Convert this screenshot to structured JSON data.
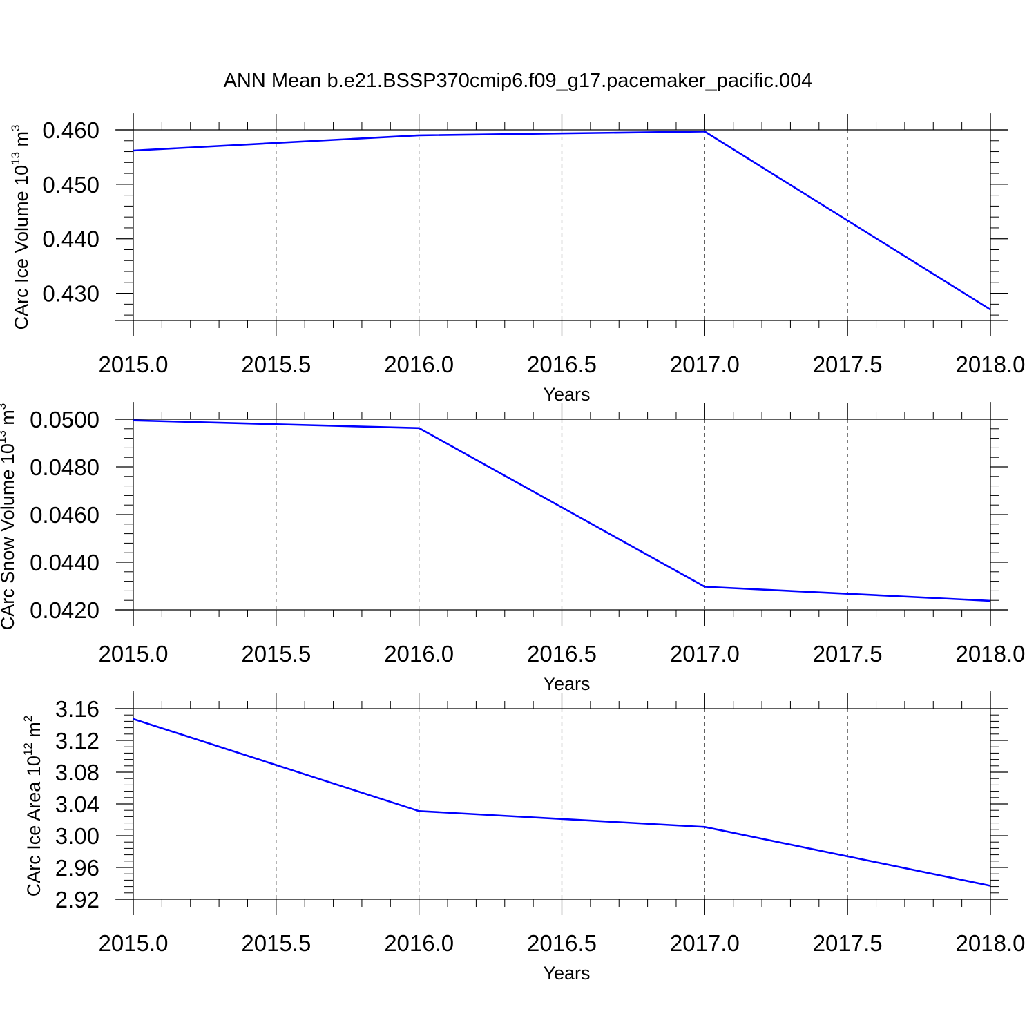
{
  "title": "ANN Mean b.e21.BSSP370cmip6.f09_g17.pacemaker_pacific.004",
  "colors": {
    "line": "#0000ff",
    "axis": "#000000",
    "grid": "#555555"
  },
  "chart_data": [
    {
      "type": "line",
      "xlabel": "Years",
      "ylabel": {
        "text": "CArc Ice Volume 10",
        "exp": "13",
        "unit": " m",
        "unit_exp": "3"
      },
      "x": [
        2015,
        2016,
        2017,
        2018
      ],
      "series": [
        {
          "values": [
            0.4562,
            0.459,
            0.4597,
            0.427
          ]
        }
      ],
      "xlim": [
        2015,
        2018
      ],
      "ylim": [
        0.425,
        0.46
      ],
      "xticks": [
        2015,
        2015.5,
        2016,
        2016.5,
        2017,
        2017.5,
        2018
      ],
      "xtick_labels": [
        "2015.0",
        "2015.5",
        "2016.0",
        "2016.5",
        "2017.0",
        "2017.5",
        "2018.0"
      ],
      "yticks": [
        0.46,
        0.45,
        0.44,
        0.43
      ],
      "ytick_labels": [
        "0.460",
        "0.450",
        "0.440",
        "0.430"
      ],
      "grid": "vertical dashed"
    },
    {
      "type": "line",
      "xlabel": "Years",
      "ylabel": {
        "text": "CArc Snow Volume 10",
        "exp": "13",
        "unit": " m",
        "unit_exp": "3"
      },
      "x": [
        2015,
        2016,
        2017,
        2018
      ],
      "series": [
        {
          "values": [
            0.04995,
            0.04963,
            0.04297,
            0.04238
          ]
        }
      ],
      "xlim": [
        2015,
        2018
      ],
      "ylim": [
        0.042,
        0.05
      ],
      "xticks": [
        2015,
        2015.5,
        2016,
        2016.5,
        2017,
        2017.5,
        2018
      ],
      "xtick_labels": [
        "2015.0",
        "2015.5",
        "2016.0",
        "2016.5",
        "2017.0",
        "2017.5",
        "2018.0"
      ],
      "yticks": [
        0.05,
        0.048,
        0.046,
        0.044,
        0.042
      ],
      "ytick_labels": [
        "0.0500",
        "0.0480",
        "0.0460",
        "0.0440",
        "0.0420"
      ],
      "grid": "vertical dashed"
    },
    {
      "type": "line",
      "xlabel": "Years",
      "ylabel": {
        "text": "CArc Ice Area 10",
        "exp": "12",
        "unit": " m",
        "unit_exp": "2"
      },
      "x": [
        2015,
        2016,
        2017,
        2018
      ],
      "series": [
        {
          "values": [
            3.147,
            3.031,
            3.011,
            2.937
          ]
        }
      ],
      "xlim": [
        2015,
        2018
      ],
      "ylim": [
        2.92,
        3.16
      ],
      "xticks": [
        2015,
        2015.5,
        2016,
        2016.5,
        2017,
        2017.5,
        2018
      ],
      "xtick_labels": [
        "2015.0",
        "2015.5",
        "2016.0",
        "2016.5",
        "2017.0",
        "2017.5",
        "2018.0"
      ],
      "yticks": [
        3.16,
        3.12,
        3.08,
        3.04,
        3.0,
        2.96,
        2.92
      ],
      "ytick_labels": [
        "3.16",
        "3.12",
        "3.08",
        "3.04",
        "3.00",
        "2.96",
        "2.92"
      ],
      "grid": "vertical dashed"
    }
  ]
}
